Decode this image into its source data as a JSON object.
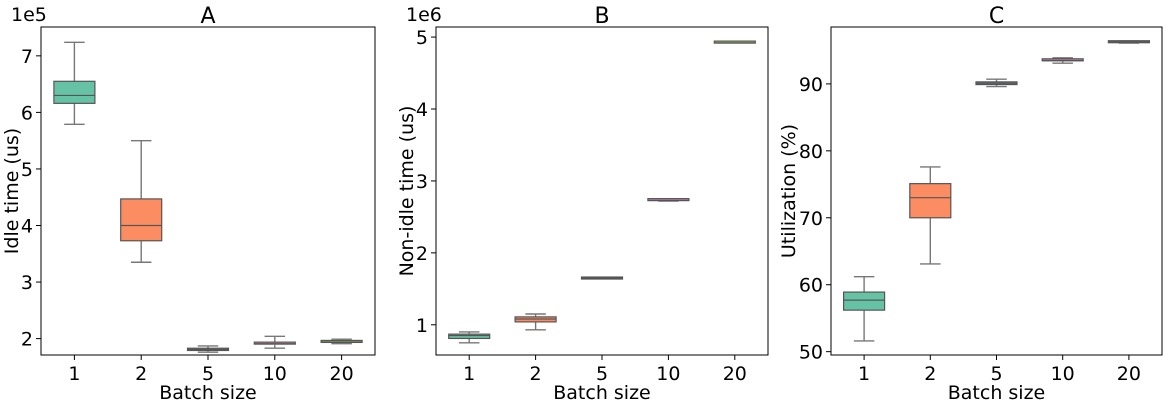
{
  "chart_data": [
    {
      "type": "box",
      "title": "A",
      "xlabel": "Batch size",
      "ylabel": "Idle time (us)",
      "offset_text": "1e5",
      "categories": [
        "1",
        "2",
        "5",
        "10",
        "20"
      ],
      "yticks": [
        2,
        3,
        4,
        5,
        6,
        7
      ],
      "ylim": [
        1.71,
        7.51
      ],
      "boxes": [
        {
          "category": "1",
          "whisker_low": 5.79,
          "q1": 6.16,
          "median": 6.3,
          "q3": 6.55,
          "whisker_high": 7.24,
          "color": "#66c2a5"
        },
        {
          "category": "2",
          "whisker_low": 3.35,
          "q1": 3.73,
          "median": 4.0,
          "q3": 4.47,
          "whisker_high": 5.5,
          "color": "#fc8d62"
        },
        {
          "category": "5",
          "whisker_low": 1.76,
          "q1": 1.79,
          "median": 1.81,
          "q3": 1.83,
          "whisker_high": 1.87,
          "color": "#8da0cb"
        },
        {
          "category": "10",
          "whisker_low": 1.83,
          "q1": 1.89,
          "median": 1.91,
          "q3": 1.92,
          "whisker_high": 2.04,
          "color": "#e78ac3"
        },
        {
          "category": "20",
          "whisker_low": 1.91,
          "q1": 1.93,
          "median": 1.94,
          "q3": 1.95,
          "whisker_high": 1.99,
          "color": "#a6d854"
        }
      ]
    },
    {
      "type": "box",
      "title": "B",
      "xlabel": "Batch size",
      "ylabel": "Non-idle time (us)",
      "offset_text": "1e6",
      "categories": [
        "1",
        "2",
        "5",
        "10",
        "20"
      ],
      "yticks": [
        1,
        2,
        3,
        4,
        5
      ],
      "ylim": [
        0.58,
        5.14
      ],
      "boxes": [
        {
          "category": "1",
          "whisker_low": 0.75,
          "q1": 0.81,
          "median": 0.85,
          "q3": 0.87,
          "whisker_high": 0.9,
          "color": "#66c2a5"
        },
        {
          "category": "2",
          "whisker_low": 0.93,
          "q1": 1.04,
          "median": 1.08,
          "q3": 1.11,
          "whisker_high": 1.15,
          "color": "#fc8d62"
        },
        {
          "category": "5",
          "whisker_low": 1.65,
          "q1": 1.65,
          "median": 1.65,
          "q3": 1.65,
          "whisker_high": 1.66,
          "color": "#8da0cb"
        },
        {
          "category": "10",
          "whisker_low": 2.72,
          "q1": 2.73,
          "median": 2.73,
          "q3": 2.74,
          "whisker_high": 2.74,
          "color": "#e78ac3"
        },
        {
          "category": "20",
          "whisker_low": 4.92,
          "q1": 4.92,
          "median": 4.92,
          "q3": 4.93,
          "whisker_high": 4.93,
          "color": "#a6d854"
        }
      ]
    },
    {
      "type": "box",
      "title": "C",
      "xlabel": "Batch size",
      "ylabel": "Utilization (%)",
      "offset_text": "",
      "categories": [
        "1",
        "2",
        "5",
        "10",
        "20"
      ],
      "yticks": [
        50,
        60,
        70,
        80,
        90
      ],
      "ylim": [
        49.5,
        98.5
      ],
      "boxes": [
        {
          "category": "1",
          "whisker_low": 51.6,
          "q1": 56.2,
          "median": 57.7,
          "q3": 58.9,
          "whisker_high": 61.2,
          "color": "#66c2a5"
        },
        {
          "category": "2",
          "whisker_low": 63.1,
          "q1": 70.0,
          "median": 73.0,
          "q3": 75.1,
          "whisker_high": 77.6,
          "color": "#fc8d62"
        },
        {
          "category": "5",
          "whisker_low": 89.6,
          "q1": 89.9,
          "median": 90.1,
          "q3": 90.3,
          "whisker_high": 90.7,
          "color": "#8da0cb"
        },
        {
          "category": "10",
          "whisker_low": 93.1,
          "q1": 93.4,
          "median": 93.5,
          "q3": 93.6,
          "whisker_high": 93.9,
          "color": "#e78ac3"
        },
        {
          "category": "20",
          "whisker_low": 96.1,
          "q1": 96.2,
          "median": 96.3,
          "q3": 96.3,
          "whisker_high": 96.4,
          "color": "#a6d854"
        }
      ]
    }
  ]
}
